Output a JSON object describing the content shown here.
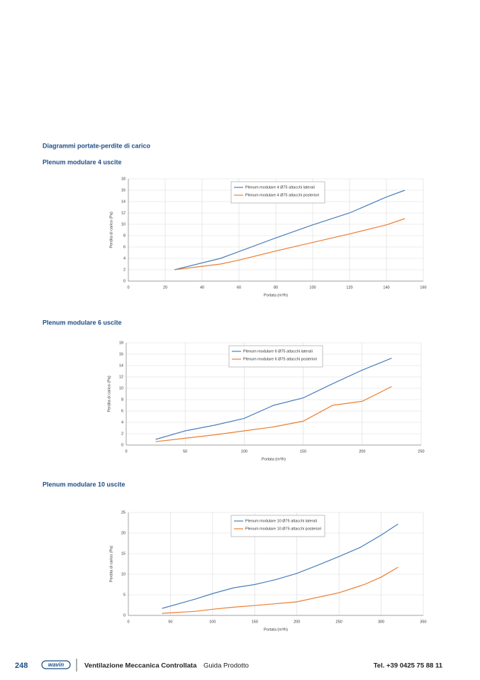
{
  "heading": "Diagrammi portate-perdite di carico",
  "chart_data": [
    {
      "type": "line",
      "title": "Plenum modulare 4 uscite",
      "x_label": "Portata (m³/h)",
      "y_label": "Perdita di carico (Pa)",
      "xlim": [
        0,
        160
      ],
      "xticks": [
        0,
        20,
        40,
        60,
        80,
        100,
        120,
        140,
        160
      ],
      "ylim": [
        0,
        18
      ],
      "yticks": [
        0,
        2,
        4,
        6,
        8,
        10,
        12,
        14,
        16,
        18
      ],
      "grid": true,
      "legend": "upper center",
      "series": [
        {
          "name": "Plenum modulare 4 Ø75 attacchi laterali",
          "color": "#4a7ebb",
          "x": [
            25,
            50,
            60,
            80,
            100,
            120,
            140,
            150
          ],
          "values": [
            2,
            4,
            5.2,
            7.6,
            9.9,
            12,
            14.8,
            16
          ]
        },
        {
          "name": "Plenum modulare 4 Ø75 attacchi posteriori",
          "color": "#ed7d31",
          "x": [
            25,
            50,
            60,
            80,
            100,
            120,
            140,
            150
          ],
          "values": [
            2,
            3,
            3.7,
            5.3,
            6.8,
            8.3,
            9.9,
            11
          ]
        }
      ]
    },
    {
      "type": "line",
      "title": "Plenum modulare 6 uscite",
      "x_label": "Portata (m³/h)",
      "y_label": "Perdita di carico (Pa)",
      "xlim": [
        0,
        250
      ],
      "xticks": [
        0,
        50,
        100,
        150,
        200,
        250
      ],
      "ylim": [
        0,
        18
      ],
      "yticks": [
        0,
        2,
        4,
        6,
        8,
        10,
        12,
        14,
        16,
        18
      ],
      "grid": true,
      "legend": "upper center",
      "series": [
        {
          "name": "Plenum modulare 6 Ø75 attacchi laterali",
          "color": "#4a7ebb",
          "x": [
            25,
            50,
            75,
            100,
            125,
            150,
            175,
            200,
            225
          ],
          "values": [
            1,
            2.5,
            3.5,
            4.7,
            7,
            8.3,
            10.8,
            13.2,
            15.3
          ]
        },
        {
          "name": "Plenum modulare 6 Ø75 attacchi posteriori",
          "color": "#ed7d31",
          "x": [
            25,
            50,
            75,
            100,
            125,
            150,
            175,
            200,
            225
          ],
          "values": [
            0.6,
            1.2,
            1.8,
            2.5,
            3.2,
            4.2,
            7,
            7.7,
            10.3
          ]
        }
      ]
    },
    {
      "type": "line",
      "title": "Plenum modulare 10 uscite",
      "x_label": "Portata (m³/h)",
      "y_label": "Perdita di carico (Pa)",
      "xlim": [
        0,
        350
      ],
      "xticks": [
        0,
        50,
        100,
        150,
        200,
        250,
        300,
        350
      ],
      "ylim": [
        0,
        25
      ],
      "yticks": [
        0,
        5,
        10,
        15,
        20,
        25
      ],
      "grid": true,
      "legend": "upper center",
      "series": [
        {
          "name": "Plenum modulare 10 Ø75 attacchi laterali",
          "color": "#4a7ebb",
          "x": [
            40,
            80,
            100,
            125,
            150,
            175,
            200,
            225,
            250,
            275,
            300,
            320
          ],
          "values": [
            1.7,
            4,
            5.3,
            6.7,
            7.5,
            8.7,
            10.2,
            12.2,
            14.3,
            16.5,
            19.5,
            22.2
          ]
        },
        {
          "name": "Plenum modulare 10 Ø75 attacchi posteriori",
          "color": "#ed7d31",
          "x": [
            40,
            80,
            100,
            125,
            150,
            200,
            250,
            280,
            300,
            320
          ],
          "values": [
            0.5,
            1,
            1.5,
            2,
            2.4,
            3.3,
            5.5,
            7.5,
            9.3,
            11.7
          ]
        }
      ]
    }
  ],
  "footer": {
    "page": "248",
    "logo": "wavin",
    "product": "Ventilazione Meccanica Controllata",
    "guide": "Guida Prodotto",
    "phone": "Tel. +39 0425 75 88 11"
  }
}
